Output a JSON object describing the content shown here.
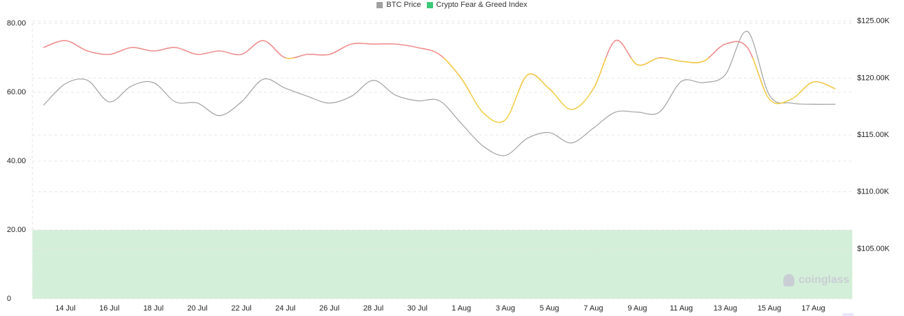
{
  "legend": [
    {
      "label": "BTC Price",
      "color": "#a0a0a0"
    },
    {
      "label": "Crypto Fear & Greed Index",
      "color": "#3cc878"
    }
  ],
  "watermark": {
    "text": "coinglass",
    "icon": "coinglass-logo-icon"
  },
  "colors": {
    "greed": "#f08c8c",
    "neutral": "#f2d04a",
    "price": "#a0a0a0",
    "fear_zone": "#d4efd9",
    "grid": "#e6e6e6"
  },
  "chart_data": {
    "type": "line",
    "title": "",
    "x": [
      "13 Jul",
      "14 Jul",
      "15 Jul",
      "16 Jul",
      "17 Jul",
      "18 Jul",
      "19 Jul",
      "20 Jul",
      "21 Jul",
      "22 Jul",
      "23 Jul",
      "24 Jul",
      "25 Jul",
      "26 Jul",
      "27 Jul",
      "28 Jul",
      "29 Jul",
      "30 Jul",
      "31 Jul",
      "1 Aug",
      "2 Aug",
      "3 Aug",
      "4 Aug",
      "5 Aug",
      "6 Aug",
      "7 Aug",
      "8 Aug",
      "9 Aug",
      "10 Aug",
      "11 Aug",
      "12 Aug",
      "13 Aug",
      "14 Aug",
      "15 Aug",
      "16 Aug",
      "17 Aug",
      "18 Aug"
    ],
    "x_tick_labels": [
      "14 Jul",
      "16 Jul",
      "18 Jul",
      "20 Jul",
      "22 Jul",
      "24 Jul",
      "26 Jul",
      "28 Jul",
      "30 Jul",
      "1 Aug",
      "3 Aug",
      "5 Aug",
      "7 Aug",
      "9 Aug",
      "11 Aug",
      "13 Aug",
      "15 Aug",
      "17 Aug"
    ],
    "y_left": {
      "ticks": [
        "0",
        "20.00",
        "40.00",
        "60.00",
        "80.00"
      ],
      "range": [
        0,
        80
      ]
    },
    "y_right": {
      "ticks": [
        "$105.00K",
        "$110.00K",
        "$115.00K",
        "$120.00K",
        "$125.00K"
      ],
      "range": [
        100600,
        124800
      ]
    },
    "series": [
      {
        "name": "BTC Price",
        "axis": "right",
        "values": [
          117600,
          119500,
          119800,
          117900,
          119300,
          119600,
          117900,
          117800,
          116700,
          117900,
          119900,
          119100,
          118400,
          117800,
          118400,
          119800,
          118500,
          118000,
          118000,
          116000,
          114000,
          113200,
          114700,
          115200,
          114300,
          115600,
          117000,
          117000,
          117000,
          119700,
          119600,
          120300,
          124100,
          118500,
          117800,
          117700,
          117700
        ]
      },
      {
        "name": "Crypto Fear & Greed Index",
        "axis": "left",
        "values": [
          73,
          75,
          72,
          71,
          73,
          72,
          73,
          71,
          72,
          71,
          75,
          70,
          71,
          71,
          74,
          74,
          74,
          73,
          71,
          64,
          54,
          52,
          65,
          61,
          55,
          61,
          75,
          68,
          70,
          69,
          69,
          74,
          73,
          58,
          58,
          63,
          61
        ]
      }
    ],
    "zones": [
      {
        "from": 0,
        "to": 20,
        "axis": "left"
      }
    ],
    "grid": true,
    "legend_position": "top-center"
  }
}
